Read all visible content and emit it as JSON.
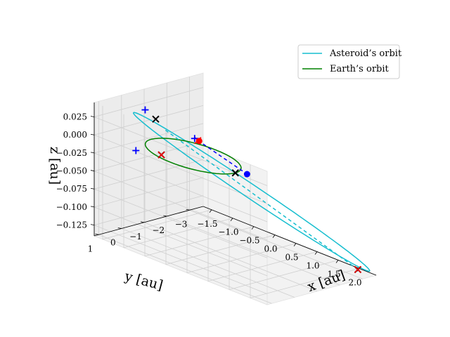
{
  "chart_data": {
    "type": "3d-line",
    "title": "",
    "xlabel": "$x$ [au]",
    "ylabel": "$y$ [au]",
    "zlabel": "$z$ [au]",
    "xlabel_text": "x [au]",
    "ylabel_text": "y [au]",
    "zlabel_text": "z [au]",
    "xlim": [
      -1.7,
      2.4
    ],
    "ylim": [
      -3.6,
      1.2
    ],
    "zlim": [
      -0.14,
      0.045
    ],
    "x_ticks": [
      -1.5,
      -1.0,
      -0.5,
      0.0,
      0.5,
      1.0,
      1.5,
      2.0
    ],
    "x_tick_labels": [
      "−1.5",
      "−1.0",
      "−0.5",
      "0.0",
      "0.5",
      "1.0",
      "1.5",
      "2.0"
    ],
    "y_ticks": [
      1,
      0,
      -1,
      -2,
      -3
    ],
    "y_tick_labels": [
      "1",
      "0",
      "−1",
      "−2",
      "−3"
    ],
    "z_ticks": [
      0.025,
      0.0,
      -0.025,
      -0.05,
      -0.075,
      -0.1,
      -0.125
    ],
    "z_tick_labels": [
      "0.025",
      "0.000",
      "−0.025",
      "−0.050",
      "−0.075",
      "−0.100",
      "−0.125"
    ],
    "grid": true,
    "legend_position": "top-right",
    "legend": [
      {
        "label": "Asteroid’s orbit",
        "color": "#17becf"
      },
      {
        "label": "Earth’s orbit",
        "color": "#008000"
      }
    ],
    "series": [
      {
        "name": "Asteroid’s orbit",
        "kind": "ellipse",
        "color": "#17becf",
        "center": [
          0.55,
          -1.55,
          -0.05
        ],
        "axis_u": [
          1.75,
          -1.95,
          -0.085
        ],
        "axis_v": [
          -0.13,
          -0.12,
          0.01
        ]
      },
      {
        "name": "Earth’s orbit",
        "kind": "circle",
        "color": "#008000",
        "center": [
          0.0,
          0.0,
          0.0
        ],
        "radius": 1.0
      },
      {
        "name": "Asteroid dashed segment",
        "kind": "segment",
        "color": "#17becf",
        "style": "dashed",
        "from": [
          -0.55,
          0.2,
          0.025
        ],
        "to": [
          2.1,
          -3.35,
          -0.137
        ]
      },
      {
        "name": "Earth–asteroid line",
        "kind": "segment",
        "color": "#0000ff",
        "style": "dashed",
        "from": [
          -0.05,
          -0.3,
          0.018
        ],
        "to": [
          0.9,
          -0.7,
          -0.01
        ]
      }
    ],
    "markers": [
      {
        "name": "x-marker",
        "symbol": "x",
        "color": "#000000",
        "at": [
          -0.7,
          0.35,
          0.038
        ]
      },
      {
        "name": "x-marker",
        "symbol": "x",
        "color": "#000000",
        "at": [
          -0.35,
          0.75,
          0.0
        ]
      },
      {
        "name": "x-marker",
        "symbol": "x",
        "color": "#000000",
        "at": [
          1.0,
          0.0,
          0.0
        ]
      },
      {
        "name": "x-marker",
        "symbol": "x",
        "color": "#000000",
        "at": [
          2.1,
          -3.35,
          -0.137
        ]
      },
      {
        "name": "x-marker",
        "symbol": "x",
        "color": "#ff0000",
        "at": [
          -0.35,
          0.75,
          0.0
        ]
      },
      {
        "name": "x-marker",
        "symbol": "x",
        "color": "#ff0000",
        "at": [
          -0.05,
          -0.3,
          0.018
        ]
      },
      {
        "name": "x-marker",
        "symbol": "x",
        "color": "#ff0000",
        "at": [
          2.1,
          -3.35,
          -0.137
        ]
      },
      {
        "name": "plus-marker",
        "symbol": "+",
        "color": "#0000ff",
        "at": [
          -0.95,
          0.35,
          0.045
        ]
      },
      {
        "name": "plus-marker",
        "symbol": "+",
        "color": "#0000ff",
        "at": [
          -0.9,
          0.85,
          -0.006
        ]
      },
      {
        "name": "plus-marker",
        "symbol": "+",
        "color": "#0000ff",
        "at": [
          -0.1,
          -0.25,
          0.02
        ]
      },
      {
        "name": "dot-marker",
        "symbol": "o",
        "color": "#ff0000",
        "at": [
          -0.02,
          -0.3,
          0.018
        ]
      },
      {
        "name": "dot-marker",
        "symbol": "o",
        "color": "#0000ff",
        "at": [
          0.9,
          -0.7,
          -0.01
        ]
      }
    ]
  }
}
